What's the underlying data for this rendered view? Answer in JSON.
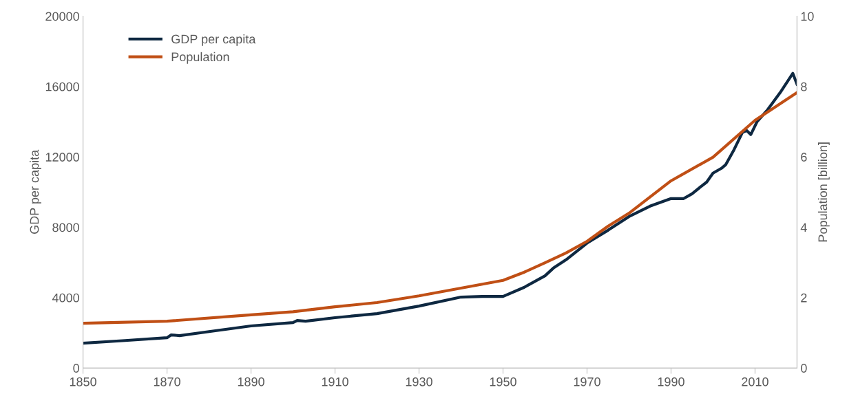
{
  "chart_data": {
    "type": "line",
    "xlabel": null,
    "ylabel": "GDP per capita",
    "y2label": "Population [billion]",
    "xlim": [
      1850,
      2020
    ],
    "xticks": [
      1850,
      1870,
      1890,
      1910,
      1930,
      1950,
      1970,
      1990,
      2010
    ],
    "ylim": [
      0,
      20000
    ],
    "yticks": [
      0,
      4000,
      8000,
      12000,
      16000,
      20000
    ],
    "y2lim": [
      0,
      10
    ],
    "y2ticks": [
      0,
      2,
      4,
      6,
      8,
      10
    ],
    "grid": false,
    "legend": "top left",
    "marker": "none",
    "line_style": "solid",
    "series": [
      {
        "name": "GDP per capita",
        "color": "#0e2841",
        "x": [
          1850,
          1860,
          1870,
          1871,
          1873,
          1880,
          1890,
          1900,
          1901,
          1903,
          1910,
          1920,
          1930,
          1940,
          1945,
          1950,
          1955,
          1960,
          1962,
          1965,
          1970,
          1975,
          1980,
          1985,
          1990,
          1993,
          1995,
          1997,
          1998.5,
          2000,
          2002,
          2003,
          2005,
          2007,
          2008,
          2009,
          2010.5,
          2013,
          2016,
          2019,
          2020
        ],
        "values": [
          1410,
          1560,
          1720,
          1880,
          1840,
          2070,
          2390,
          2580,
          2700,
          2660,
          2860,
          3090,
          3520,
          4030,
          4070,
          4070,
          4580,
          5240,
          5680,
          6150,
          7100,
          7830,
          8610,
          9200,
          9630,
          9630,
          9900,
          10290,
          10570,
          11080,
          11350,
          11550,
          12410,
          13390,
          13500,
          13270,
          14010,
          14680,
          15660,
          16750,
          16130
        ]
      },
      {
        "name": "Population",
        "color": "#c04f15",
        "axis": "y2",
        "x": [
          1850,
          1870,
          1890,
          1900,
          1910,
          1920,
          1930,
          1940,
          1950,
          1955,
          1960,
          1965,
          1970,
          1975,
          1980,
          1990,
          2000,
          2010,
          2020
        ],
        "values": [
          1.27,
          1.33,
          1.51,
          1.6,
          1.74,
          1.86,
          2.05,
          2.27,
          2.49,
          2.72,
          2.99,
          3.27,
          3.6,
          4.03,
          4.4,
          5.32,
          5.99,
          7.04,
          7.83
        ]
      }
    ]
  }
}
